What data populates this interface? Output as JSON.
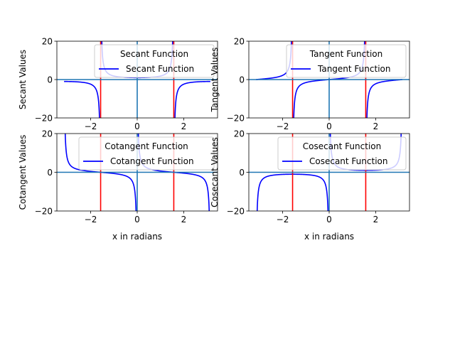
{
  "chart_data": [
    {
      "type": "line",
      "title": "",
      "xlabel": "",
      "ylabel": "Secant Values",
      "xlim": [
        -3.45,
        3.45
      ],
      "ylim": [
        -20,
        20
      ],
      "xticks": [
        -2,
        0,
        2
      ],
      "yticks": [
        -20,
        0,
        20
      ],
      "xtick_labels": [
        "−2",
        "0",
        "2"
      ],
      "ytick_labels": [
        "−20",
        "0",
        "20"
      ],
      "show_xlabel": false,
      "legend": {
        "title": "Secant Function",
        "placement": "top-right"
      },
      "series": [
        {
          "name": "Secant Function",
          "function": "sec",
          "color": "#0000ff"
        }
      ],
      "asymptotes_x": [
        -1.5708,
        1.5708
      ],
      "reference_lines": {
        "x": 0,
        "y": 0,
        "color": "#1f77b4"
      },
      "asymptote_color": "#ff0000"
    },
    {
      "type": "line",
      "title": "",
      "xlabel": "",
      "ylabel": "Tangent Values",
      "xlim": [
        -3.45,
        3.45
      ],
      "ylim": [
        -20,
        20
      ],
      "xticks": [
        -2,
        0,
        2
      ],
      "yticks": [
        -20,
        0,
        20
      ],
      "xtick_labels": [
        "−2",
        "0",
        "2"
      ],
      "ytick_labels": [
        "−20",
        "0",
        "20"
      ],
      "show_xlabel": false,
      "legend": {
        "title": "Tangent Function",
        "placement": "top-right"
      },
      "series": [
        {
          "name": "Tangent Function",
          "function": "tan",
          "color": "#0000ff"
        }
      ],
      "asymptotes_x": [
        -1.5708,
        1.5708
      ],
      "reference_lines": {
        "x": 0,
        "y": 0,
        "color": "#1f77b4"
      },
      "asymptote_color": "#ff0000"
    },
    {
      "type": "line",
      "title": "",
      "xlabel": "x in radians",
      "ylabel": "Cotangent Values",
      "xlim": [
        -3.45,
        3.45
      ],
      "ylim": [
        -20,
        20
      ],
      "xticks": [
        -2,
        0,
        2
      ],
      "yticks": [
        -20,
        0,
        20
      ],
      "xtick_labels": [
        "−2",
        "0",
        "2"
      ],
      "ytick_labels": [
        "−20",
        "0",
        "20"
      ],
      "show_xlabel": true,
      "legend": {
        "title": "Cotangent Function",
        "placement": "top-right"
      },
      "series": [
        {
          "name": "Cotangent Function",
          "function": "cot",
          "color": "#0000ff"
        }
      ],
      "asymptotes_x": [
        -1.5708,
        1.5708
      ],
      "reference_lines": {
        "x": 0,
        "y": 0,
        "color": "#1f77b4"
      },
      "asymptote_color": "#ff0000"
    },
    {
      "type": "line",
      "title": "",
      "xlabel": "x in radians",
      "ylabel": "Cosecant Values",
      "xlim": [
        -3.45,
        3.45
      ],
      "ylim": [
        -20,
        20
      ],
      "xticks": [
        -2,
        0,
        2
      ],
      "yticks": [
        -20,
        0,
        20
      ],
      "xtick_labels": [
        "−2",
        "0",
        "2"
      ],
      "ytick_labels": [
        "−20",
        "0",
        "20"
      ],
      "show_xlabel": true,
      "legend": {
        "title": "Cosecant Function",
        "placement": "top-right"
      },
      "series": [
        {
          "name": "Cosecant Function",
          "function": "csc",
          "color": "#0000ff"
        }
      ],
      "asymptotes_x": [
        -1.5708,
        1.5708
      ],
      "reference_lines": {
        "x": 0,
        "y": 0,
        "color": "#1f77b4"
      },
      "asymptote_color": "#ff0000"
    }
  ]
}
